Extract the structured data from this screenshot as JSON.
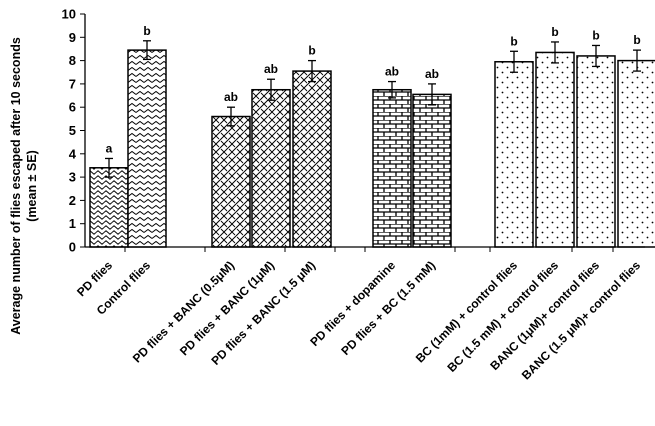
{
  "chart_data": {
    "type": "bar",
    "ylabel_line1": "Average number of flies escaped after 10 seconds",
    "ylabel_line2": "(mean ± SE)",
    "xlabel": "",
    "ylim": [
      0,
      10
    ],
    "yticks": [
      0,
      1,
      2,
      3,
      4,
      5,
      6,
      7,
      8,
      9,
      10
    ],
    "grid": false,
    "legend": "none",
    "categories": [
      "PD flies",
      "Control flies",
      "PD flies + BANC (0.5μM)",
      "PD flies + BANC (1μM)",
      "PD flies + BANC (1.5 μM)",
      "PD flies + dopamine",
      "PD flies + BC (1.5 mM)",
      "BC (1mM) + control flies",
      "BC (1.5 mM) + control flies",
      "BANC (1μM)+ control flies",
      "BANC (1.5 μM)+ control flies"
    ],
    "values": [
      3.4,
      8.45,
      5.6,
      6.75,
      7.55,
      6.75,
      6.55,
      7.95,
      8.35,
      8.2,
      8.0
    ],
    "errors": [
      0.4,
      0.4,
      0.4,
      0.45,
      0.45,
      0.35,
      0.45,
      0.45,
      0.45,
      0.45,
      0.45
    ],
    "significance": [
      "a",
      "b",
      "ab",
      "ab",
      "b",
      "ab",
      "ab",
      "b",
      "b",
      "b",
      "b"
    ],
    "patterns": [
      "wave",
      "zigzag",
      "diagonal",
      "diagonal",
      "diagonal",
      "brick",
      "brick",
      "dots",
      "dots",
      "dots",
      "dots"
    ],
    "bar_fill_color": "#ffffff",
    "bar_stroke_color": "#000000"
  }
}
